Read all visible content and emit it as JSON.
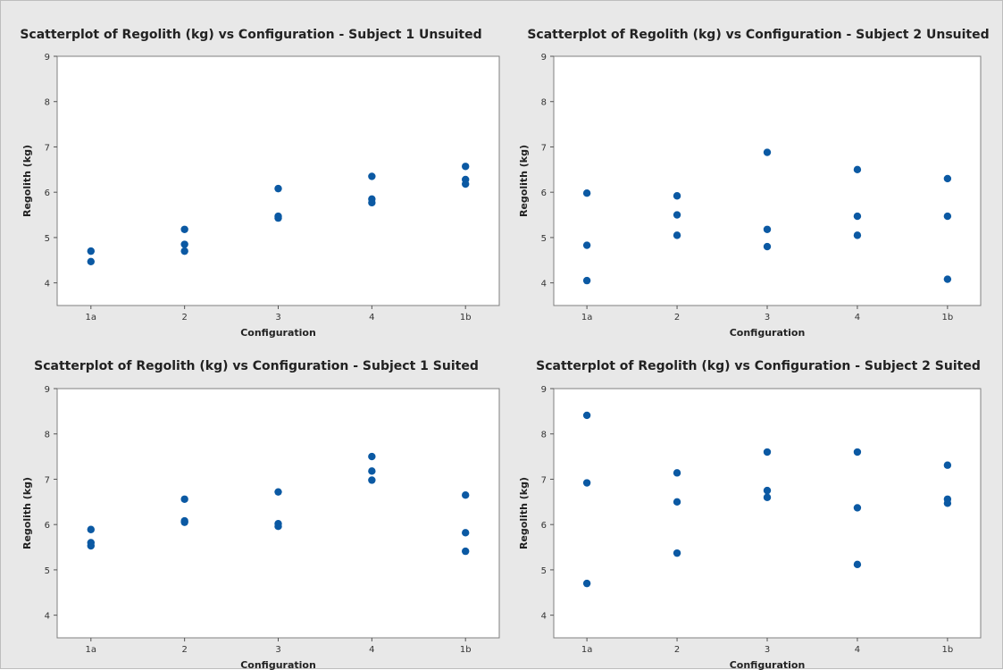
{
  "chart_data": [
    {
      "type": "scatter",
      "title": "Scatterplot of Regolith (kg) vs Configuration - Subject 1 Unsuited",
      "xlabel": "Configuration",
      "ylabel": "Regolith (kg)",
      "categories": [
        "1a",
        "2",
        "3",
        "4",
        "1b"
      ],
      "ylim": [
        3.5,
        9
      ],
      "yticks": [
        4,
        5,
        6,
        7,
        8,
        9
      ],
      "grid": false,
      "marker_color": "#0b59a3",
      "points": [
        {
          "x": "1a",
          "y": 4.7
        },
        {
          "x": "1a",
          "y": 4.47
        },
        {
          "x": "2",
          "y": 5.18
        },
        {
          "x": "2",
          "y": 4.85
        },
        {
          "x": "2",
          "y": 4.7
        },
        {
          "x": "3",
          "y": 6.08
        },
        {
          "x": "3",
          "y": 5.47
        },
        {
          "x": "3",
          "y": 5.43
        },
        {
          "x": "4",
          "y": 6.35
        },
        {
          "x": "4",
          "y": 5.85
        },
        {
          "x": "4",
          "y": 5.77
        },
        {
          "x": "1b",
          "y": 6.57
        },
        {
          "x": "1b",
          "y": 6.28
        },
        {
          "x": "1b",
          "y": 6.18
        }
      ]
    },
    {
      "type": "scatter",
      "title": "Scatterplot of Regolith (kg) vs Configuration - Subject 2 Unsuited",
      "xlabel": "Configuration",
      "ylabel": "Regolith (kg)",
      "categories": [
        "1a",
        "2",
        "3",
        "4",
        "1b"
      ],
      "ylim": [
        3.5,
        9
      ],
      "yticks": [
        4,
        5,
        6,
        7,
        8,
        9
      ],
      "grid": false,
      "marker_color": "#0b59a3",
      "points": [
        {
          "x": "1a",
          "y": 5.98
        },
        {
          "x": "1a",
          "y": 4.83
        },
        {
          "x": "1a",
          "y": 4.05
        },
        {
          "x": "2",
          "y": 5.92
        },
        {
          "x": "2",
          "y": 5.5
        },
        {
          "x": "2",
          "y": 5.05
        },
        {
          "x": "3",
          "y": 6.88
        },
        {
          "x": "3",
          "y": 5.18
        },
        {
          "x": "3",
          "y": 4.8
        },
        {
          "x": "4",
          "y": 6.5
        },
        {
          "x": "4",
          "y": 5.47
        },
        {
          "x": "4",
          "y": 5.05
        },
        {
          "x": "1b",
          "y": 6.3
        },
        {
          "x": "1b",
          "y": 5.47
        },
        {
          "x": "1b",
          "y": 4.08
        }
      ]
    },
    {
      "type": "scatter",
      "title": "Scatterplot of Regolith (kg) vs Configuration - Subject 1 Suited",
      "xlabel": "Configuration",
      "ylabel": "Regolith (kg)",
      "categories": [
        "1a",
        "2",
        "3",
        "4",
        "1b"
      ],
      "ylim": [
        3.5,
        9
      ],
      "yticks": [
        4,
        5,
        6,
        7,
        8,
        9
      ],
      "grid": false,
      "marker_color": "#0b59a3",
      "points": [
        {
          "x": "1a",
          "y": 5.89
        },
        {
          "x": "1a",
          "y": 5.6
        },
        {
          "x": "1a",
          "y": 5.53
        },
        {
          "x": "2",
          "y": 6.56
        },
        {
          "x": "2",
          "y": 6.08
        },
        {
          "x": "2",
          "y": 6.05
        },
        {
          "x": "3",
          "y": 6.72
        },
        {
          "x": "3",
          "y": 6.02
        },
        {
          "x": "3",
          "y": 5.96
        },
        {
          "x": "4",
          "y": 7.5
        },
        {
          "x": "4",
          "y": 7.18
        },
        {
          "x": "4",
          "y": 6.98
        },
        {
          "x": "1b",
          "y": 6.65
        },
        {
          "x": "1b",
          "y": 5.82
        },
        {
          "x": "1b",
          "y": 5.41
        }
      ]
    },
    {
      "type": "scatter",
      "title": "Scatterplot of Regolith (kg) vs Configuration - Subject 2 Suited",
      "xlabel": "Configuration",
      "ylabel": "Regolith (kg)",
      "categories": [
        "1a",
        "2",
        "3",
        "4",
        "1b"
      ],
      "ylim": [
        3.5,
        9
      ],
      "yticks": [
        4,
        5,
        6,
        7,
        8,
        9
      ],
      "grid": false,
      "marker_color": "#0b59a3",
      "points": [
        {
          "x": "1a",
          "y": 8.41
        },
        {
          "x": "1a",
          "y": 6.92
        },
        {
          "x": "1a",
          "y": 4.7
        },
        {
          "x": "2",
          "y": 7.14
        },
        {
          "x": "2",
          "y": 6.5
        },
        {
          "x": "2",
          "y": 5.37
        },
        {
          "x": "3",
          "y": 7.6
        },
        {
          "x": "3",
          "y": 6.75
        },
        {
          "x": "3",
          "y": 6.6
        },
        {
          "x": "4",
          "y": 7.6
        },
        {
          "x": "4",
          "y": 6.37
        },
        {
          "x": "4",
          "y": 5.12
        },
        {
          "x": "1b",
          "y": 7.31
        },
        {
          "x": "1b",
          "y": 6.56
        },
        {
          "x": "1b",
          "y": 6.47
        }
      ]
    }
  ]
}
